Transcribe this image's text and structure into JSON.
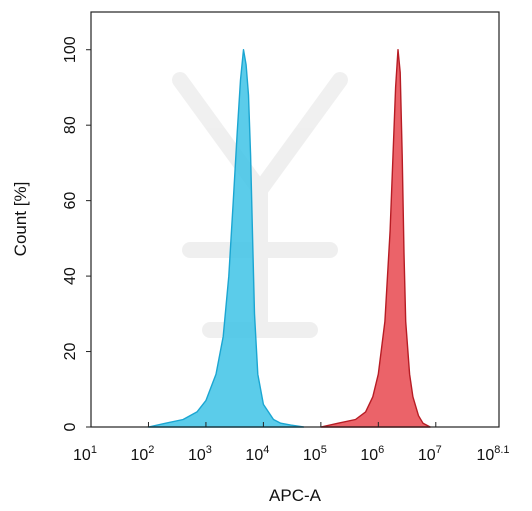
{
  "chart_data": {
    "type": "area",
    "xlabel": "APC-A",
    "ylabel": "Count [%]",
    "x_scale": "log",
    "xlim": [
      10,
      125892541
    ],
    "ylim": [
      0,
      110
    ],
    "x_ticks": [
      {
        "base": "10",
        "exp": "1",
        "value": 10
      },
      {
        "base": "10",
        "exp": "2",
        "value": 100
      },
      {
        "base": "10",
        "exp": "3",
        "value": 1000
      },
      {
        "base": "10",
        "exp": "4",
        "value": 10000
      },
      {
        "base": "10",
        "exp": "5",
        "value": 100000
      },
      {
        "base": "10",
        "exp": "6",
        "value": 1000000
      },
      {
        "base": "10",
        "exp": "7",
        "value": 10000000
      },
      {
        "base": "10",
        "exp": "8.1",
        "value": 125892541
      }
    ],
    "y_ticks": [
      "0",
      "20",
      "40",
      "60",
      "80",
      "100"
    ],
    "grid": false,
    "series": [
      {
        "color": "#3ec3e6",
        "edge": "#1ba6d2",
        "x": [
          100,
          200,
          400,
          700,
          1000,
          1500,
          2000,
          2500,
          3000,
          3500,
          4000,
          4500,
          5000,
          5500,
          6000,
          6500,
          7000,
          8000,
          10000,
          15000,
          20000,
          30000,
          50000
        ],
        "y": [
          0,
          1,
          2,
          4,
          7,
          14,
          24,
          40,
          60,
          78,
          92,
          100,
          96,
          88,
          72,
          50,
          30,
          14,
          6,
          2,
          1,
          0.5,
          0
        ]
      },
      {
        "color": "#e8484f",
        "edge": "#b71c24",
        "x": [
          100000,
          200000,
          400000,
          600000,
          800000,
          1000000,
          1300000,
          1600000,
          1800000,
          2000000,
          2200000,
          2400000,
          2600000,
          2800000,
          3000000,
          3500000,
          4000000,
          5000000,
          6000000,
          8000000
        ],
        "y": [
          0,
          1,
          2,
          4,
          8,
          14,
          28,
          52,
          72,
          90,
          100,
          94,
          72,
          46,
          28,
          14,
          8,
          3,
          1,
          0
        ]
      }
    ]
  }
}
